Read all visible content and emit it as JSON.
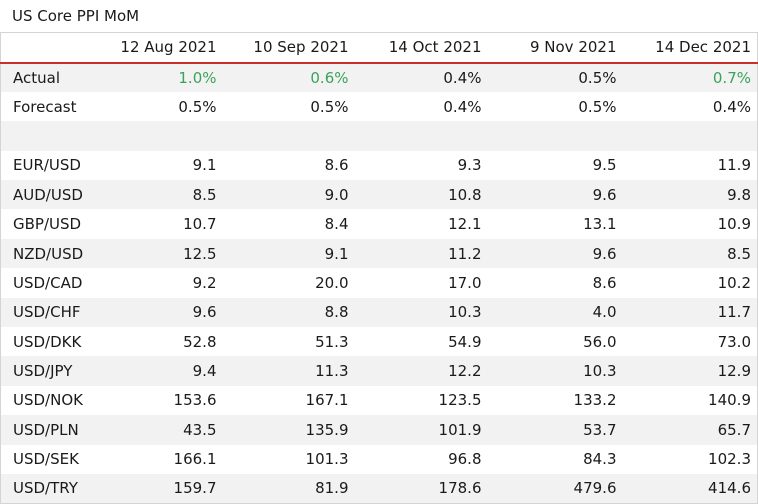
{
  "title": "US Core PPI MoM",
  "colors": {
    "beat": "#3aa35b",
    "header_rule": "#c9302c"
  },
  "dates": [
    "12 Aug 2021",
    "10 Sep 2021",
    "14 Oct 2021",
    "9 Nov 2021",
    "14 Dec 2021"
  ],
  "actual": {
    "label": "Actual",
    "values": [
      "1.0%",
      "0.6%",
      "0.4%",
      "0.5%",
      "0.7%"
    ],
    "beat": [
      true,
      true,
      false,
      false,
      true
    ]
  },
  "forecast": {
    "label": "Forecast",
    "values": [
      "0.5%",
      "0.5%",
      "0.4%",
      "0.5%",
      "0.4%"
    ]
  },
  "pairs": [
    {
      "pair": "EUR/USD",
      "values": [
        "9.1",
        "8.6",
        "9.3",
        "9.5",
        "11.9"
      ]
    },
    {
      "pair": "AUD/USD",
      "values": [
        "8.5",
        "9.0",
        "10.8",
        "9.6",
        "9.8"
      ]
    },
    {
      "pair": "GBP/USD",
      "values": [
        "10.7",
        "8.4",
        "12.1",
        "13.1",
        "10.9"
      ]
    },
    {
      "pair": "NZD/USD",
      "values": [
        "12.5",
        "9.1",
        "11.2",
        "9.6",
        "8.5"
      ]
    },
    {
      "pair": "USD/CAD",
      "values": [
        "9.2",
        "20.0",
        "17.0",
        "8.6",
        "10.2"
      ]
    },
    {
      "pair": "USD/CHF",
      "values": [
        "9.6",
        "8.8",
        "10.3",
        "4.0",
        "11.7"
      ]
    },
    {
      "pair": "USD/DKK",
      "values": [
        "52.8",
        "51.3",
        "54.9",
        "56.0",
        "73.0"
      ]
    },
    {
      "pair": "USD/JPY",
      "values": [
        "9.4",
        "11.3",
        "12.2",
        "10.3",
        "12.9"
      ]
    },
    {
      "pair": "USD/NOK",
      "values": [
        "153.6",
        "167.1",
        "123.5",
        "133.2",
        "140.9"
      ]
    },
    {
      "pair": "USD/PLN",
      "values": [
        "43.5",
        "135.9",
        "101.9",
        "53.7",
        "65.7"
      ]
    },
    {
      "pair": "USD/SEK",
      "values": [
        "166.1",
        "101.3",
        "96.8",
        "84.3",
        "102.3"
      ]
    },
    {
      "pair": "USD/TRY",
      "values": [
        "159.7",
        "81.9",
        "178.6",
        "479.6",
        "414.6"
      ]
    }
  ]
}
